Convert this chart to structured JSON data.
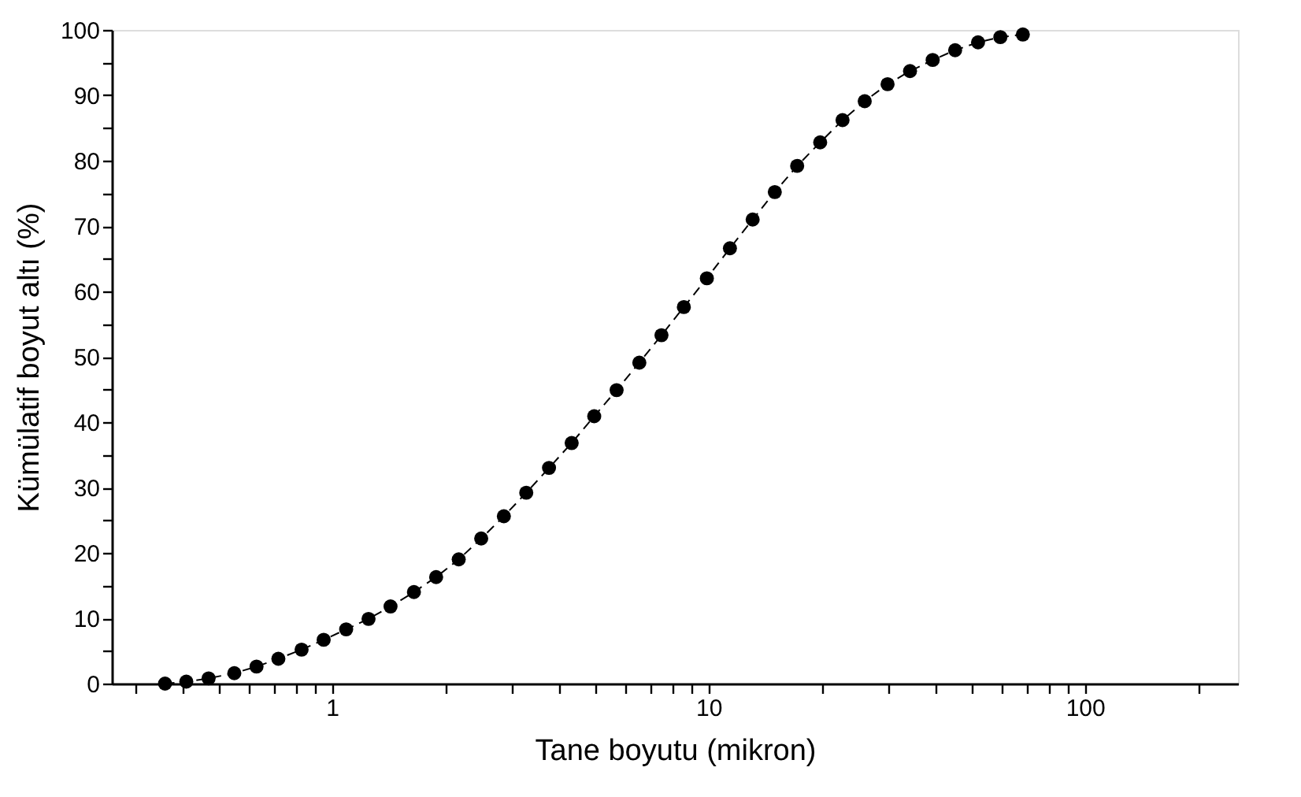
{
  "chart_data": {
    "type": "line",
    "xlabel": "Tane boyutu (mikron)",
    "ylabel": "Kümülatif boyut altı (%)",
    "log": "x",
    "grid": false,
    "marker": "circle",
    "line_style": "dashed",
    "xlim": [
      0.26,
      255
    ],
    "ylim": [
      0,
      100
    ],
    "xticks": [
      {
        "value": 0.3,
        "label": null
      },
      {
        "value": 0.4,
        "label": null
      },
      {
        "value": 0.5,
        "label": null
      },
      {
        "value": 0.6,
        "label": null
      },
      {
        "value": 0.7,
        "label": null
      },
      {
        "value": 0.8,
        "label": null
      },
      {
        "value": 0.9,
        "label": null
      },
      1,
      {
        "value": 2,
        "label": null
      },
      {
        "value": 3,
        "label": null
      },
      {
        "value": 4,
        "label": null
      },
      {
        "value": 5,
        "label": null
      },
      {
        "value": 6,
        "label": null
      },
      {
        "value": 7,
        "label": null
      },
      {
        "value": 8,
        "label": null
      },
      {
        "value": 9,
        "label": null
      },
      10,
      {
        "value": 20,
        "label": null
      },
      {
        "value": 30,
        "label": null
      },
      {
        "value": 40,
        "label": null
      },
      {
        "value": 50,
        "label": null
      },
      {
        "value": 60,
        "label": null
      },
      {
        "value": 70,
        "label": null
      },
      {
        "value": 80,
        "label": null
      },
      {
        "value": 90,
        "label": null
      },
      100,
      {
        "value": 200,
        "label": null
      }
    ],
    "yticks": [
      0,
      {
        "value": 5,
        "label": null
      },
      10,
      {
        "value": 15,
        "label": null
      },
      20,
      {
        "value": 25,
        "label": null
      },
      30,
      {
        "value": 35,
        "label": null
      },
      40,
      {
        "value": 45,
        "label": null
      },
      50,
      {
        "value": 55,
        "label": null
      },
      60,
      {
        "value": 65,
        "label": null
      },
      70,
      {
        "value": 75,
        "label": null
      },
      80,
      {
        "value": 85,
        "label": null
      },
      90,
      {
        "value": 95,
        "label": null
      },
      100
    ],
    "series": [
      {
        "color": "#000000",
        "x": [
          0.36,
          0.41,
          0.47,
          0.55,
          0.63,
          0.72,
          0.83,
          0.95,
          1.09,
          1.25,
          1.43,
          1.65,
          1.89,
          2.17,
          2.49,
          2.86,
          3.28,
          3.77,
          4.33,
          4.97,
          5.7,
          6.55,
          7.5,
          8.6,
          9.9,
          11.4,
          13.1,
          15,
          17.2,
          19.8,
          22.7,
          26,
          29.9,
          34.3,
          39.4,
          45.2,
          52,
          59.6,
          68.4
        ],
        "values": [
          0,
          0.3,
          0.8,
          1.6,
          2.6,
          3.8,
          5.2,
          6.7,
          8.3,
          9.9,
          11.8,
          14,
          16.3,
          19,
          22.2,
          25.6,
          29.2,
          33,
          36.8,
          40.9,
          44.9,
          49.1,
          53.3,
          57.6,
          62,
          66.6,
          71,
          75.2,
          79.2,
          82.8,
          86.2,
          89.1,
          91.7,
          93.7,
          95.4,
          96.9,
          98.1,
          98.9,
          99.3
        ]
      }
    ]
  }
}
